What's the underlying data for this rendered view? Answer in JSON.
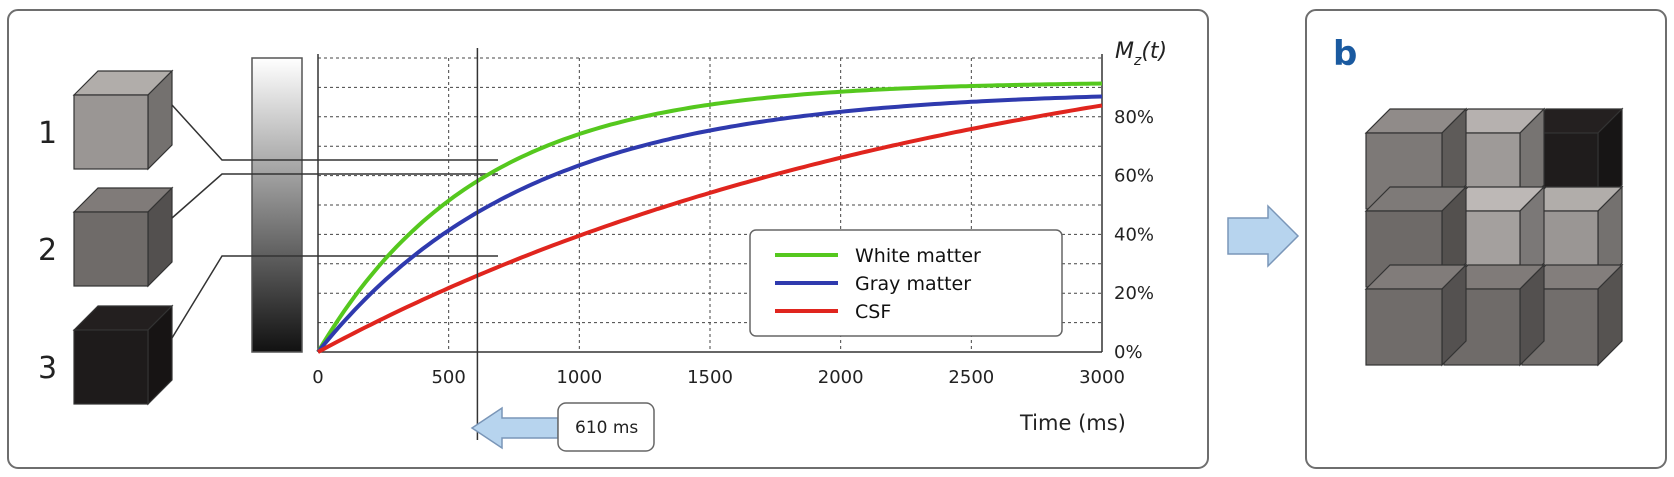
{
  "panel_b_label": "b",
  "cubes": [
    {
      "label": "1",
      "shade": "#9a9694"
    },
    {
      "label": "2",
      "shade": "#6f6b69"
    },
    {
      "label": "3",
      "shade": "#1e1b1b"
    }
  ],
  "chart_data": {
    "type": "line",
    "ylabel_main": "M",
    "ylabel_sub": "z",
    "ylabel_tail": "(t)",
    "xlabel": "Time (ms)",
    "xlim": [
      0,
      3000
    ],
    "ylim": [
      0,
      100
    ],
    "x_ticks": [
      "0",
      "500",
      "1000",
      "1500",
      "2000",
      "2500",
      "3000"
    ],
    "y_ticks": [
      "0%",
      "20%",
      "40%",
      "60%",
      "80%"
    ],
    "grid": true,
    "legend_position": "lower-right",
    "series": [
      {
        "name": "White matter",
        "color": "#55c81e",
        "t1": 610,
        "mmax": 92
      },
      {
        "name": "Gray matter",
        "color": "#2f3aae",
        "t1": 800,
        "mmax": 89
      },
      {
        "name": "CSF",
        "color": "#e0251e",
        "t1": 2500,
        "mmax": 120
      }
    ],
    "annotation": "610 ms",
    "annotation_x": 610
  },
  "grid_cubes": [
    [
      "#7d7977",
      "#9e9a98",
      "#1f1c1c"
    ],
    [
      "#6e6a68",
      "#a4a09e",
      "#9a9694"
    ],
    [
      "#706c6a",
      "#6f6b69",
      "#726e6c"
    ]
  ]
}
